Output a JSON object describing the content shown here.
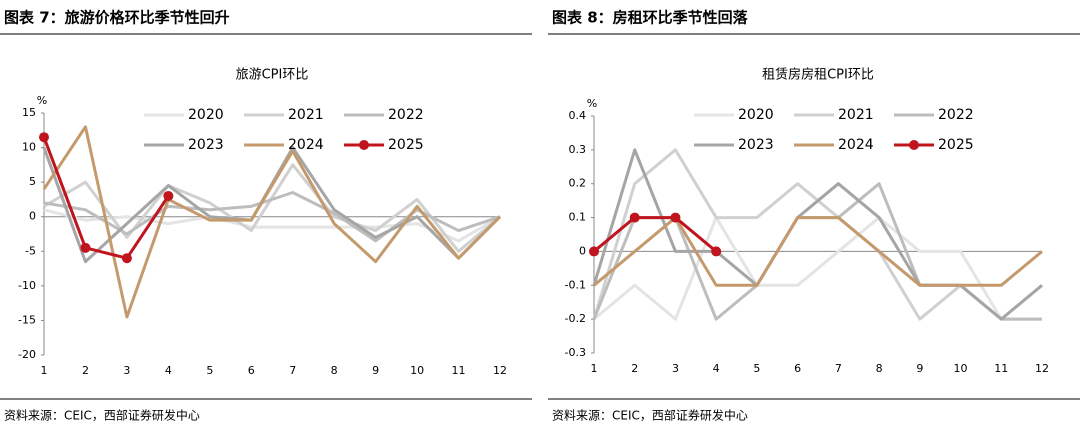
{
  "chart_data": [
    {
      "type": "line",
      "heading": "图表 7：旅游价格环比季节性回升",
      "title": "旅游CPI环比",
      "unit": "%",
      "source": "资料来源：CEIC，西部证券研发中心",
      "categories": [
        1,
        2,
        3,
        4,
        5,
        6,
        7,
        8,
        9,
        10,
        11,
        12
      ],
      "ylim": [
        -20,
        15
      ],
      "yticks": [
        -20,
        -15,
        -10,
        -5,
        0,
        5,
        10,
        15
      ],
      "grid": false,
      "series": [
        {
          "name": "2020",
          "color": "#e4e4e4",
          "values": [
            1,
            -0.5,
            0,
            -1,
            0,
            -1.5,
            -1.5,
            -1.5,
            -1.5,
            -1,
            -3.5,
            0
          ]
        },
        {
          "name": "2021",
          "color": "#d0d0d0",
          "values": [
            1.5,
            5,
            -3,
            4.5,
            2,
            -2,
            7.5,
            0,
            -2,
            2.5,
            -5,
            0
          ]
        },
        {
          "name": "2022",
          "color": "#bdbdbd",
          "values": [
            2,
            1,
            -2.5,
            1.5,
            1,
            1.5,
            3.5,
            0.5,
            -3.5,
            1,
            -2,
            0
          ]
        },
        {
          "name": "2023",
          "color": "#a5a5a5",
          "values": [
            10,
            -6.5,
            -1,
            4.5,
            0,
            -0.5,
            10,
            1,
            -3,
            0,
            -6,
            0
          ]
        },
        {
          "name": "2024",
          "color": "#c49a6c",
          "values": [
            4,
            13,
            -14.5,
            2.5,
            -0.5,
            -0.5,
            9.5,
            -1,
            -6.5,
            1.5,
            -6,
            0
          ]
        },
        {
          "name": "2025",
          "color": "#c0141e",
          "marker": true,
          "values": [
            11.5,
            -4.5,
            -6,
            3,
            null,
            null,
            null,
            null,
            null,
            null,
            null,
            null
          ]
        }
      ]
    },
    {
      "type": "line",
      "heading": "图表 8：房租环比季节性回落",
      "title": "租赁房房租CPI环比",
      "unit": "%",
      "source": "资料来源：CEIC，西部证券研发中心",
      "categories": [
        1,
        2,
        3,
        4,
        5,
        6,
        7,
        8,
        9,
        10,
        11,
        12
      ],
      "ylim": [
        -0.3,
        0.4
      ],
      "yticks": [
        -0.3,
        -0.2,
        -0.1,
        0,
        0.1,
        0.2,
        0.3,
        0.4
      ],
      "grid": false,
      "series": [
        {
          "name": "2020",
          "color": "#e4e4e4",
          "values": [
            -0.2,
            -0.1,
            -0.2,
            0.1,
            -0.1,
            -0.1,
            0,
            0.1,
            0,
            0,
            -0.2,
            -0.1
          ]
        },
        {
          "name": "2021",
          "color": "#d0d0d0",
          "values": [
            -0.2,
            0.2,
            0.3,
            0.1,
            0.1,
            0.2,
            0.1,
            0,
            -0.2,
            -0.1,
            -0.2,
            -0.2
          ]
        },
        {
          "name": "2022",
          "color": "#bdbdbd",
          "values": [
            -0.2,
            0.1,
            0.1,
            -0.2,
            -0.1,
            0.1,
            0.1,
            0.2,
            -0.1,
            -0.1,
            -0.2,
            -0.2
          ]
        },
        {
          "name": "2023",
          "color": "#a5a5a5",
          "values": [
            -0.1,
            0.3,
            0,
            0,
            -0.1,
            0.1,
            0.2,
            0.1,
            -0.1,
            -0.1,
            -0.2,
            -0.1
          ]
        },
        {
          "name": "2024",
          "color": "#c49a6c",
          "values": [
            -0.1,
            0,
            0.1,
            -0.1,
            -0.1,
            0.1,
            0.1,
            0,
            -0.1,
            -0.1,
            -0.1,
            0
          ]
        },
        {
          "name": "2025",
          "color": "#c0141e",
          "marker": true,
          "values": [
            0,
            0.1,
            0.1,
            0,
            null,
            null,
            null,
            null,
            null,
            null,
            null,
            null
          ]
        }
      ]
    }
  ]
}
